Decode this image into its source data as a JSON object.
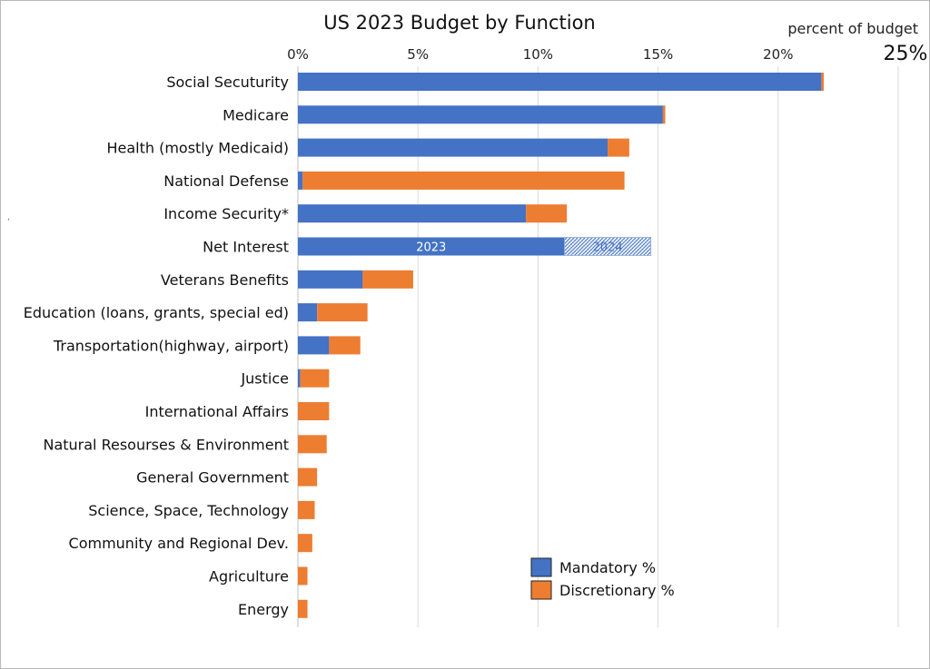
{
  "chart_data": {
    "type": "bar",
    "orientation": "horizontal",
    "stacked": true,
    "title": "US 2023 Budget by Function",
    "xlabel": "percent of budget",
    "xlim": [
      0,
      25
    ],
    "x_ticks": [
      "0%",
      "5%",
      "10%",
      "15%",
      "20%",
      "25%"
    ],
    "x_tick_values": [
      0,
      5,
      10,
      15,
      20,
      25
    ],
    "axis_position": "top",
    "grid": true,
    "legend_position": "bottom-right",
    "categories": [
      "Social Secuturity",
      "Medicare",
      "Health (mostly Medicaid)",
      "National Defense",
      "Income Security*",
      "Net Interest",
      "Veterans Benefits",
      "Education (loans, grants, special ed)",
      "Transportation(highway, airport)",
      "Justice",
      "International Affairs",
      "Natural Resourses & Environment",
      "General Government",
      "Science, Space, Technology",
      "Community and Regional Dev.",
      "Agriculture",
      "Energy"
    ],
    "series": [
      {
        "name": "Mandatory %",
        "color": "#4472c4",
        "values": [
          21.8,
          15.2,
          12.9,
          0.2,
          9.5,
          11.1,
          2.7,
          0.8,
          1.3,
          0.1,
          0.0,
          0.0,
          0.0,
          0.0,
          0.0,
          0.0,
          0.0
        ]
      },
      {
        "name": "Discretionary %",
        "color": "#ed7d31",
        "values": [
          0.1,
          0.1,
          0.9,
          13.4,
          1.7,
          0.0,
          2.1,
          2.1,
          1.3,
          1.2,
          1.3,
          1.2,
          0.8,
          0.7,
          0.6,
          0.4,
          0.4
        ]
      }
    ],
    "annotations": [
      {
        "category": "Net Interest",
        "label_2023": "2023",
        "label_2024": "2024",
        "value_2024": 14.7,
        "note": "hatched extension shows 2024 net interest"
      }
    ],
    "stray_mark": "‘"
  }
}
